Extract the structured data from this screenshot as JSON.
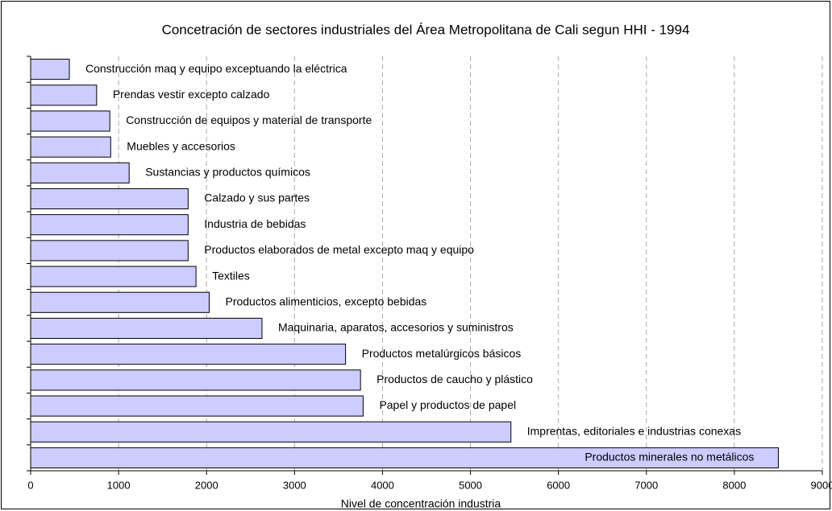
{
  "chart_data": {
    "type": "barh",
    "title": "Concetración de sectores industriales del Área Metropolitana de Cali segun HHI - 1994",
    "x_label": "Nivel de concentración industria",
    "categories": [
      "Construcción maq y equipo exceptuando la eléctrica",
      "Prendas vestir excepto calzado",
      "Construcción de equipos y material de transporte",
      "Muebles y accesorios",
      "Sustancias y productos químicos",
      "Calzado y sus partes",
      "Industria de bebidas",
      "Productos elaborados de metal excepto maq y equipo",
      "Textiles",
      "Productos alimenticios, excepto bebidas",
      "Maquinaria, aparatos, accesorios y suministros",
      "Productos metalúrgicos básicos",
      "Productos de caucho y plástico",
      "Papel y productos de papel",
      "Imprentas, editoriales e industrias conexas",
      "Productos minerales no metálicos"
    ],
    "values": [
      440,
      750,
      900,
      910,
      1120,
      1790,
      1790,
      1790,
      1880,
      2030,
      2630,
      3580,
      3750,
      3780,
      5460,
      8500
    ],
    "color": "#ccccff",
    "xlim": [
      0,
      9000
    ],
    "xticks": [
      0,
      1000,
      2000,
      3000,
      4000,
      5000,
      6000,
      7000,
      8000,
      9000
    ],
    "grid": true
  }
}
